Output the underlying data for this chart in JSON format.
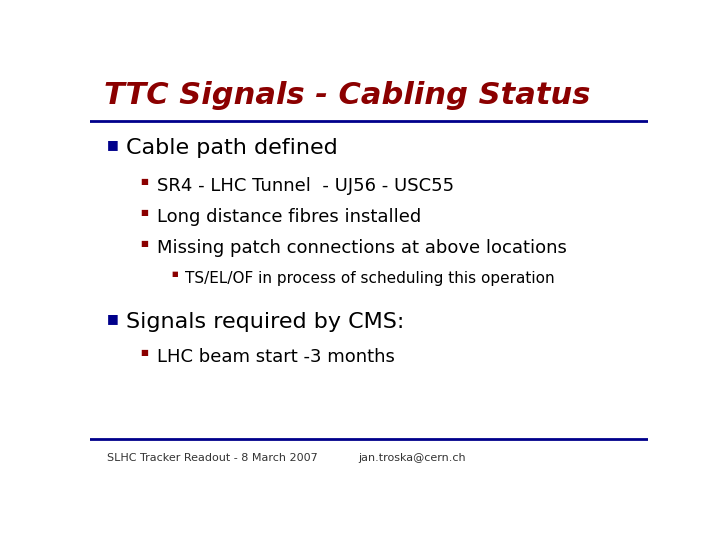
{
  "title": "TTC Signals - Cabling Status",
  "title_color": "#8B0000",
  "title_fontsize": 22,
  "bg_color": "#FFFFFF",
  "header_line_color": "#00008B",
  "footer_line_color": "#00008B",
  "main_bullet_color": "#00008B",
  "sub_bullet_color": "#8B0000",
  "subsub_bullet_color": "#8B0000",
  "text_color": "#000000",
  "footer_left": "SLHC Tracker Readout - 8 March 2007",
  "footer_center": "jan.troska@cern.ch",
  "footer_color": "#333333",
  "footer_fontsize": 8,
  "bullet1": "Cable path defined",
  "bullet1_fontsize": 16,
  "sub_bullets1": [
    "SR4 - LHC Tunnel  - UJ56 - USC55",
    "Long distance fibres installed",
    "Missing patch connections at above locations"
  ],
  "sub_bullet_fontsize": 13,
  "sub_sub_bullets1": [
    "TS/EL/OF in process of scheduling this operation"
  ],
  "subsub_bullet_fontsize": 11,
  "bullet2": "Signals required by CMS:",
  "bullet2_fontsize": 16,
  "sub_bullets2": [
    "LHC beam start -3 months"
  ]
}
